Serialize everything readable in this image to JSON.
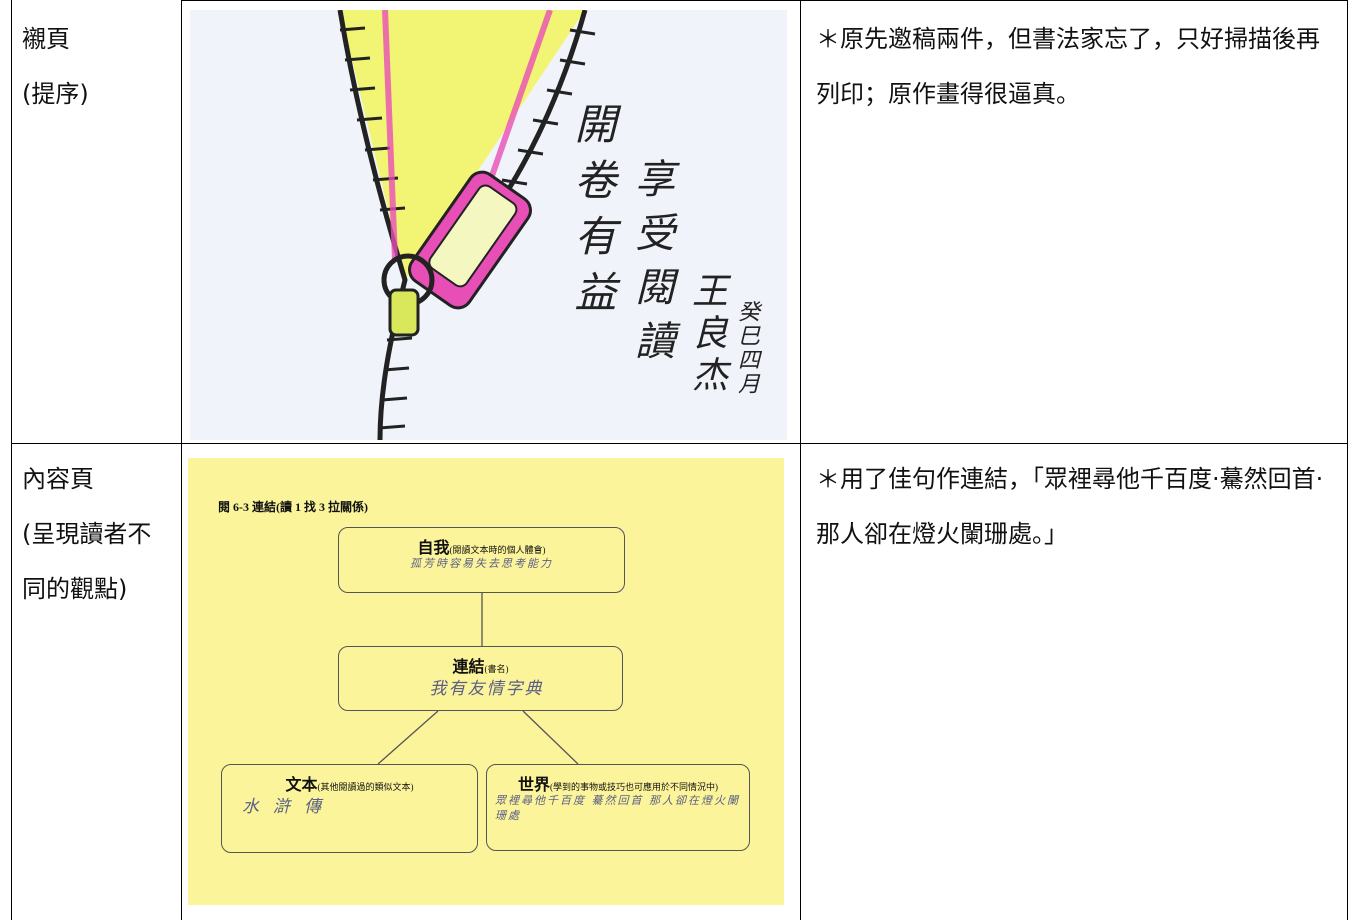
{
  "table": {
    "rows": [
      {
        "label": [
          "襯頁",
          "(提序)"
        ],
        "note": "＊原先邀稿兩件，但書法家忘了，只好掃描後再列印；原作畫得很逼真。",
        "image": {
          "calligraphy": [
            "開卷有益",
            "享受閱讀",
            "王良杰",
            "癸巳四月"
          ]
        }
      },
      {
        "label": [
          "內容頁",
          "(呈現讀者不同的觀點)"
        ],
        "note": "＊用了佳句作連結，「眾裡尋他千百度·驀然回首·那人卻在燈火闌珊處。」",
        "image": {
          "heading": "閱 6-3 連結(讀 1 找 3 拉關係)",
          "boxes": [
            {
              "title": "自我",
              "hint": "(閱讀文本時的個人體會)",
              "answer": "孤芳時容易失去思考能力"
            },
            {
              "title": "連結",
              "hint": "(書名)",
              "answer": "我有友情字典"
            },
            {
              "title": "文本",
              "hint": "(其他閱讀過的類似文本)",
              "answer": "水滸傳"
            },
            {
              "title": "世界",
              "hint": "(學到的事物或技巧也可應用於不同情況中)",
              "answer": "眾裡尋他千百度 驀然回首 那人卻在燈火闌珊處"
            }
          ]
        }
      }
    ]
  }
}
